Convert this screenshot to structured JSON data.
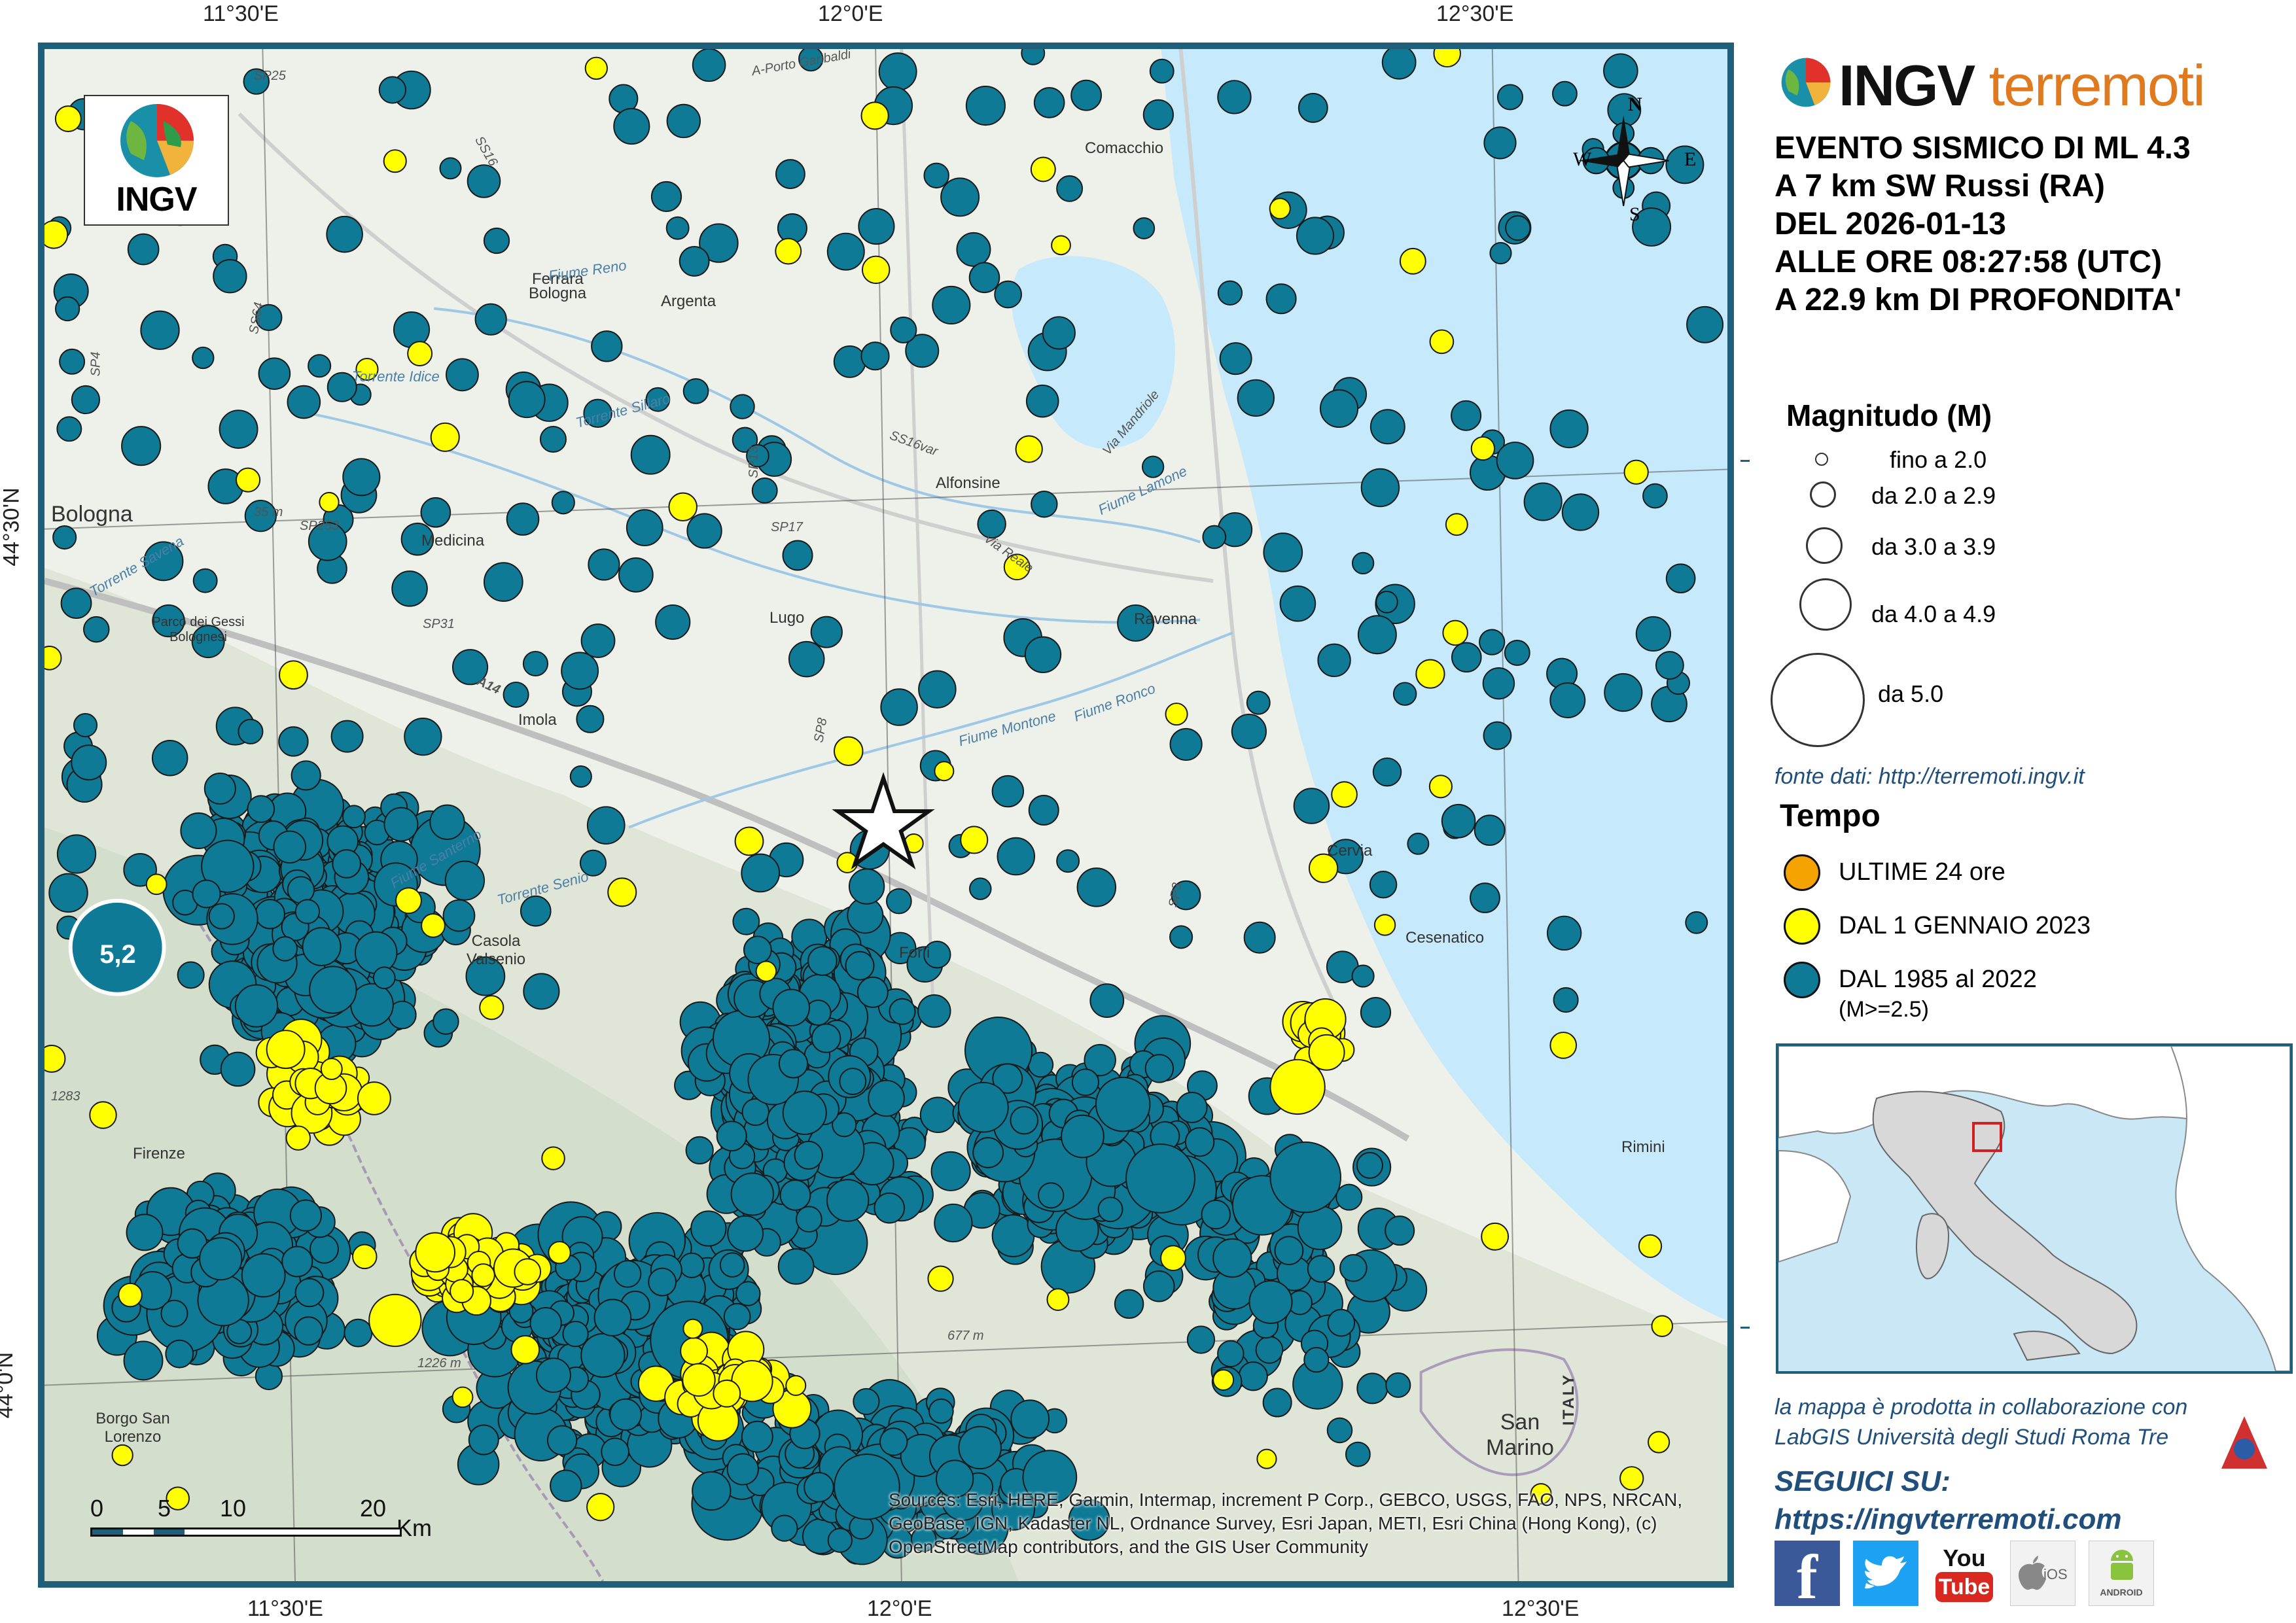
{
  "map": {
    "ticks_top": [
      "11°30'E",
      "12°0'E",
      "12°30'E"
    ],
    "ticks_bottom": [
      "11°30'E",
      "12°0'E",
      "12°30'E"
    ],
    "ticks_left": [
      "44°30'N",
      "44°0'N"
    ],
    "places": {
      "comacchio": "Comacchio",
      "ferrara": "Ferrara",
      "argenta": "Argenta",
      "bologna_small": "Bologna",
      "alfonsine": "Alfonsine",
      "medicina": "Medicina",
      "lugo": "Lugo",
      "ravenna": "Ravenna",
      "imola": "Imola",
      "cervia": "Cervia",
      "cesenatico": "Cesenatico",
      "forli": "Forlì",
      "casola": "Casola Valsenio",
      "firenze": "Firenze",
      "rimini": "Rimini",
      "san_marino": "San Marino",
      "italy": "ITALY",
      "borgo": "Borgo San Lorenzo",
      "gessi": "Parco dei Gessi Bolognesi",
      "bologna_big": "Bologna"
    },
    "water": {
      "reno": "Fiume Reno",
      "idice": "Torrente Idice",
      "sillaro": "Torrente Sillaro",
      "lamone": "Fiume Lamone",
      "montone": "Fiume Montone",
      "ronco": "Fiume Ronco",
      "savena": "Torrente Savena",
      "santerno": "Fiume Santerno",
      "senio": "Torrente Senio"
    },
    "roads": [
      "SS16",
      "SP25",
      "SS64",
      "SP4",
      "SP13",
      "SS16var",
      "SP253",
      "SP17",
      "SP31",
      "A14",
      "SP8",
      "SP3",
      "Via Mandriole",
      "Via Reale",
      "A-Porto Garibaldi"
    ],
    "elevations": [
      "35 m",
      "1283",
      "1226 m",
      "677 m"
    ],
    "max_event_label": "5,2",
    "sources": "Sources: Esri, HERE, Garmin, Intermap, increment P Corp., GEBCO, USGS, FAO, NPS, NRCAN, GeoBase, IGN, Kadaster NL, Ordnance Survey, Esri Japan, METI, Esri China (Hong Kong), (c) OpenStreetMap contributors, and the GIS User Community",
    "scale": {
      "labels": [
        "0",
        "5",
        "10",
        "20"
      ],
      "unit": "Km"
    },
    "compass": {
      "n": "N",
      "s": "S",
      "e": "E",
      "w": "W"
    },
    "logo_text": "INGV"
  },
  "sidebar": {
    "brand_a": "INGV",
    "brand_b": "terremoti",
    "event_lines": [
      "EVENTO SISMICO DI ML 4.3",
      "A 7 km SW Russi (RA)",
      "DEL 2026-01-13",
      "ALLE ORE 08:27:58 (UTC)",
      "A 22.9 km DI PROFONDITA'"
    ],
    "magnitude_title": "Magnitudo (M)",
    "magnitude_classes": [
      "fino a 2.0",
      "da 2.0 a 2.9",
      "da 3.0 a 3.9",
      "da 4.0 a 4.9",
      "da 5.0"
    ],
    "source": "fonte dati: http://terremoti.ingv.it",
    "time_title": "Tempo",
    "time_classes": [
      "ULTIME 24 ore",
      "DAL 1 GENNAIO 2023",
      "DAL 1985 al 2022"
    ],
    "time_note": "(M>=2.5)",
    "credit": [
      "la mappa è prodotta in collaborazione con",
      "LabGIS Università degli Studi Roma Tre"
    ],
    "follow": [
      "SEGUICI SU:",
      "https://ingvterremoti.com"
    ],
    "social": {
      "facebook": "f",
      "youtube_a": "You",
      "youtube_b": "Tube",
      "ios": "iOS",
      "android": "ANDROID"
    }
  },
  "colors": {
    "historic": "#0e7a96",
    "recent": "#ffff00",
    "last24h": "#f5a300",
    "sea": "#c6e9fb",
    "frame": "#1f5f7a"
  }
}
